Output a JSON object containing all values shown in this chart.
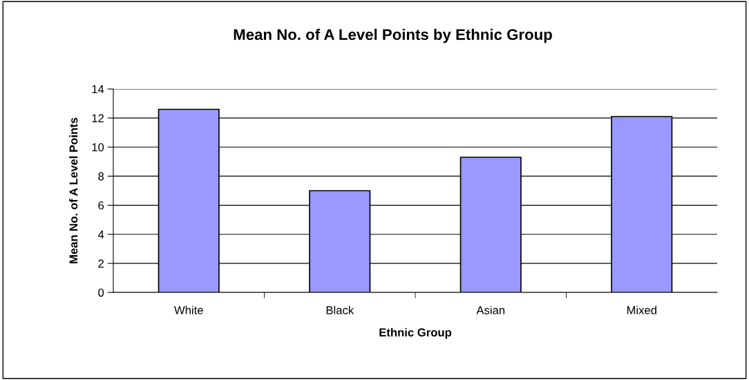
{
  "chart_data": {
    "type": "bar",
    "title": "Mean No. of A Level Points by Ethnic Group",
    "xlabel": "Ethnic Group",
    "ylabel": "Mean No. of A Level Points",
    "categories": [
      "White",
      "Black",
      "Asian",
      "Mixed"
    ],
    "values": [
      12.6,
      7.0,
      9.3,
      12.1
    ],
    "color": "#9999ff",
    "ylim": [
      0,
      14
    ],
    "yticks": [
      0,
      2,
      4,
      6,
      8,
      10,
      12,
      14
    ],
    "grid": "y",
    "legend": false
  }
}
